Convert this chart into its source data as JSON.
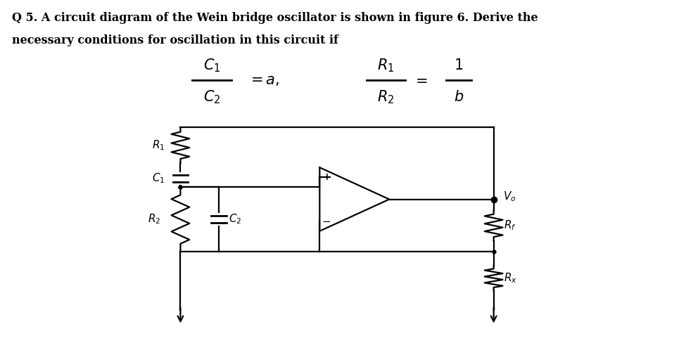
{
  "title_line1": "Q 5. A circuit diagram of the Wein bridge oscillator is shown in figure 6. Derive the",
  "title_line2": "necessary conditions for oscillation in this circuit if",
  "bg_color": "#ffffff",
  "text_color": "#000000"
}
